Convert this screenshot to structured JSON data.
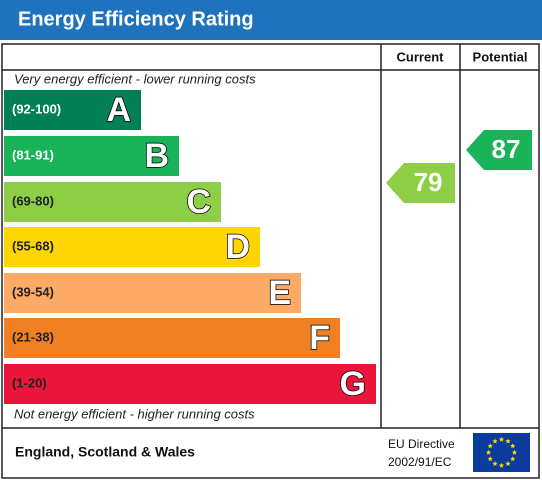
{
  "header": {
    "title": "Energy Efficiency Rating"
  },
  "columns": {
    "current": "Current",
    "potential": "Potential"
  },
  "top_note": "Very energy efficient - lower running costs",
  "bottom_note": "Not energy efficient - higher running costs",
  "bands": [
    {
      "range": "(92-100)",
      "letter": "A"
    },
    {
      "range": "(81-91)",
      "letter": "B"
    },
    {
      "range": "(69-80)",
      "letter": "C"
    },
    {
      "range": "(55-68)",
      "letter": "D"
    },
    {
      "range": "(39-54)",
      "letter": "E"
    },
    {
      "range": "(21-38)",
      "letter": "F"
    },
    {
      "range": "(1-20)",
      "letter": "G"
    }
  ],
  "current": "79",
  "potential": "87",
  "footer": {
    "region": "England, Scotland & Wales",
    "directive_line1": "EU Directive",
    "directive_line2": "2002/91/EC"
  }
}
